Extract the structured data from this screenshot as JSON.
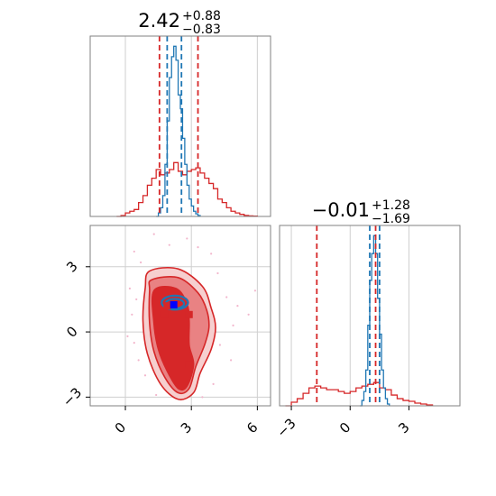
{
  "colors": {
    "reference": "#d62728",
    "fit": "#1f77b4",
    "fit_marker": "#0000ff",
    "red_fill_dark": "#d62728",
    "red_fill_mid": "#e98283",
    "red_fill_light": "#f6cfcf",
    "scatter_dots": "#f2b6cc",
    "grid": "#cfcfcf",
    "frame": "#808080"
  },
  "chart_data": [
    {
      "type": "area",
      "panel": "marginal-1",
      "title": {
        "value": "2.42",
        "plus": "+0.88",
        "minus": "−0.83"
      },
      "xlim": [
        -1.6,
        6.6
      ],
      "grid": true,
      "xticks": [
        0,
        3,
        6
      ],
      "series": [
        {
          "color": "#d62728",
          "style": "step-histogram",
          "x": [
            -0.4,
            -0.2,
            0,
            0.2,
            0.4,
            0.6,
            0.8,
            1.0,
            1.2,
            1.4,
            1.6,
            1.8,
            2.0,
            2.2,
            2.4,
            2.6,
            2.8,
            3.0,
            3.2,
            3.4,
            3.6,
            3.8,
            4.0,
            4.2,
            4.4,
            4.6,
            4.8,
            5.0,
            5.2,
            5.4,
            5.6,
            5.8,
            6.0
          ],
          "y": [
            0,
            0.005,
            0.02,
            0.03,
            0.04,
            0.08,
            0.12,
            0.18,
            0.22,
            0.27,
            0.24,
            0.25,
            0.27,
            0.31,
            0.26,
            0.24,
            0.26,
            0.27,
            0.28,
            0.25,
            0.22,
            0.19,
            0.16,
            0.1,
            0.08,
            0.05,
            0.03,
            0.02,
            0.012,
            0.006,
            0.003,
            0.002,
            0
          ]
        },
        {
          "color": "#1f77b4",
          "style": "step-histogram",
          "x": [
            1.4,
            1.5,
            1.6,
            1.7,
            1.8,
            1.9,
            2.0,
            2.1,
            2.2,
            2.3,
            2.4,
            2.5,
            2.6,
            2.7,
            2.8,
            2.9,
            3.0,
            3.1,
            3.2,
            3.3,
            3.4
          ],
          "y": [
            0,
            0.02,
            0.05,
            0.12,
            0.3,
            0.55,
            0.8,
            0.92,
            0.98,
            0.9,
            0.7,
            0.62,
            0.45,
            0.3,
            0.18,
            0.1,
            0.06,
            0.03,
            0.015,
            0.005,
            0
          ]
        }
      ],
      "vlines": [
        {
          "x": 1.55,
          "color": "#d62728"
        },
        {
          "x": 1.9,
          "color": "#1f77b4"
        },
        {
          "x": 2.55,
          "color": "#1f77b4"
        },
        {
          "x": 3.3,
          "color": "#d62728"
        }
      ]
    },
    {
      "type": "scatter",
      "panel": "joint",
      "xlim": [
        -1.6,
        6.6
      ],
      "ylim": [
        -3.4,
        4.9
      ],
      "grid": true,
      "xticks": [
        0,
        3,
        6
      ],
      "yticks": [
        -3,
        0,
        3
      ],
      "contours": {
        "outer": [
          [
            1.1,
            2.8
          ],
          [
            2.4,
            2.9
          ],
          [
            3.5,
            2.1
          ],
          [
            3.9,
            1.1
          ],
          [
            4.1,
            0.2
          ],
          [
            3.9,
            -0.8
          ],
          [
            3.4,
            -1.9
          ],
          [
            3.1,
            -2.8
          ],
          [
            2.4,
            -3.1
          ],
          [
            1.6,
            -2.4
          ],
          [
            1.0,
            -1.0
          ],
          [
            0.8,
            0.5
          ],
          [
            0.9,
            2.0
          ]
        ],
        "middle": [
          [
            1.2,
            2.4
          ],
          [
            2.4,
            2.5
          ],
          [
            3.3,
            1.8
          ],
          [
            3.7,
            1.0
          ],
          [
            3.8,
            0.2
          ],
          [
            3.6,
            -0.6
          ],
          [
            3.2,
            -1.6
          ],
          [
            2.9,
            -2.6
          ],
          [
            2.4,
            -2.8
          ],
          [
            1.8,
            -2.1
          ],
          [
            1.3,
            -0.9
          ],
          [
            1.1,
            0.4
          ],
          [
            1.1,
            1.9
          ]
        ],
        "inner": [
          [
            1.3,
            1.9
          ],
          [
            2.3,
            2.0
          ],
          [
            2.8,
            1.3
          ],
          [
            2.9,
            0.5
          ],
          [
            2.9,
            -0.6
          ],
          [
            3.1,
            -1.5
          ],
          [
            2.8,
            -2.5
          ],
          [
            2.4,
            -2.6
          ],
          [
            1.9,
            -1.8
          ],
          [
            1.5,
            -0.8
          ],
          [
            1.3,
            0.4
          ]
        ]
      },
      "fit_contours": [
        {
          "cx": 2.25,
          "cy": 1.35,
          "rx": 0.6,
          "ry": 0.32
        },
        {
          "cx": 2.25,
          "cy": 1.3,
          "rx": 0.42,
          "ry": 0.22
        }
      ],
      "markers_reference": [
        {
          "x": 1.8,
          "y": 0.8
        },
        {
          "x": 2.9,
          "y": 0.8
        },
        {
          "x": 2.9,
          "y": -1.5
        },
        {
          "x": 1.9,
          "y": 1.2
        }
      ],
      "marker_fit": {
        "x": 2.2,
        "y": 1.25
      },
      "scatter_points": [
        [
          0.2,
          2.0
        ],
        [
          0.5,
          1.5
        ],
        [
          0.4,
          -0.5
        ],
        [
          0.3,
          0.8
        ],
        [
          0.7,
          3.2
        ],
        [
          1.3,
          4.5
        ],
        [
          2.8,
          4.3
        ],
        [
          3.9,
          3.6
        ],
        [
          4.2,
          2.7
        ],
        [
          4.6,
          1.6
        ],
        [
          5.1,
          1.2
        ],
        [
          5.6,
          0.8
        ],
        [
          4.9,
          0.3
        ],
        [
          4.3,
          -0.6
        ],
        [
          4.8,
          -1.3
        ],
        [
          4.0,
          -2.4
        ],
        [
          3.5,
          -3.0
        ],
        [
          1.4,
          -2.9
        ],
        [
          0.9,
          -2.0
        ],
        [
          0.6,
          -1.3
        ],
        [
          0.1,
          -0.2
        ],
        [
          5.9,
          1.9
        ],
        [
          3.3,
          3.9
        ],
        [
          2.0,
          4.0
        ],
        [
          0.4,
          3.7
        ]
      ]
    },
    {
      "type": "area",
      "panel": "marginal-2",
      "title": {
        "value": "−0.01",
        "plus": "+1.28",
        "minus": "−1.69"
      },
      "xlim": [
        -3.6,
        5.6
      ],
      "grid": true,
      "xticks": [
        -3,
        0,
        3
      ],
      "series": [
        {
          "color": "#d62728",
          "style": "step-histogram",
          "x": [
            -3.3,
            -3.0,
            -2.7,
            -2.4,
            -2.1,
            -1.8,
            -1.5,
            -1.2,
            -0.9,
            -0.6,
            -0.3,
            0,
            0.3,
            0.6,
            0.9,
            1.2,
            1.5,
            1.8,
            2.1,
            2.4,
            2.7,
            3.0,
            3.3,
            3.6,
            3.9,
            4.2
          ],
          "y": [
            0,
            0.02,
            0.04,
            0.07,
            0.1,
            0.11,
            0.1,
            0.09,
            0.09,
            0.08,
            0.07,
            0.08,
            0.1,
            0.11,
            0.12,
            0.13,
            0.1,
            0.09,
            0.06,
            0.04,
            0.03,
            0.025,
            0.015,
            0.01,
            0.005,
            0
          ]
        },
        {
          "color": "#1f77b4",
          "style": "step-histogram",
          "x": [
            0.5,
            0.6,
            0.7,
            0.8,
            0.9,
            1.0,
            1.1,
            1.2,
            1.3,
            1.4,
            1.5,
            1.6,
            1.7,
            1.8,
            1.9,
            2.0
          ],
          "y": [
            0,
            0.03,
            0.08,
            0.2,
            0.45,
            0.7,
            0.85,
            0.95,
            0.85,
            0.6,
            0.4,
            0.2,
            0.1,
            0.04,
            0.01,
            0
          ]
        }
      ],
      "vlines": [
        {
          "x": -1.7,
          "color": "#d62728"
        },
        {
          "x": 1.0,
          "color": "#1f77b4"
        },
        {
          "x": 1.3,
          "color": "#d62728"
        },
        {
          "x": 1.5,
          "color": "#1f77b4"
        }
      ]
    }
  ]
}
